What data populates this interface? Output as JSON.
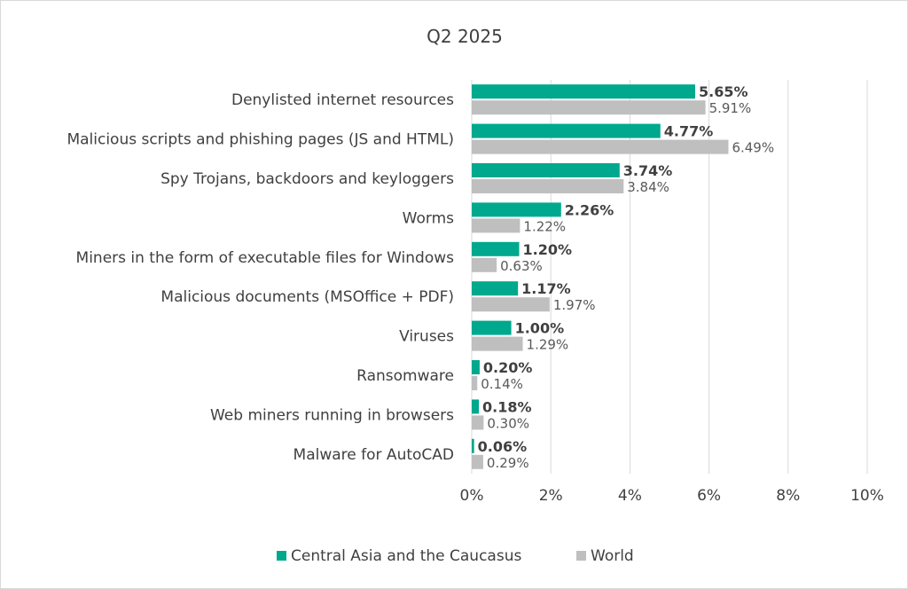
{
  "chart_data": {
    "type": "bar",
    "orientation": "horizontal",
    "title": "Q2 2025",
    "categories": [
      "Denylisted internet resources",
      "Malicious scripts and phishing pages (JS and HTML)",
      "Spy Trojans, backdoors and keyloggers",
      "Worms",
      "Miners in the form of executable files for Windows",
      "Malicious documents (MSOffice + PDF)",
      "Viruses",
      "Ransomware",
      "Web miners running in browsers",
      "Malware for AutoCAD"
    ],
    "series": [
      {
        "name": "Central Asia and the Caucasus",
        "color": "#00a88e",
        "values": [
          5.65,
          4.77,
          3.74,
          2.26,
          1.2,
          1.17,
          1.0,
          0.2,
          0.18,
          0.06
        ],
        "labels": [
          "5.65%",
          "4.77%",
          "3.74%",
          "2.26%",
          "1.20%",
          "1.17%",
          "1.00%",
          "0.20%",
          "0.18%",
          "0.06%"
        ]
      },
      {
        "name": "World",
        "color": "#bfbfbf",
        "values": [
          5.91,
          6.49,
          3.84,
          1.22,
          0.63,
          1.97,
          1.29,
          0.14,
          0.3,
          0.29
        ],
        "labels": [
          "5.91%",
          "6.49%",
          "3.84%",
          "1.22%",
          "0.63%",
          "1.97%",
          "1.29%",
          "0.14%",
          "0.30%",
          "0.29%"
        ]
      }
    ],
    "xlim": [
      0,
      10
    ],
    "xticks": [
      0,
      2,
      4,
      6,
      8,
      10
    ],
    "xtick_labels": [
      "0%",
      "2%",
      "4%",
      "6%",
      "8%",
      "10%"
    ],
    "grid": "vertical",
    "legend": "bottom-center"
  }
}
